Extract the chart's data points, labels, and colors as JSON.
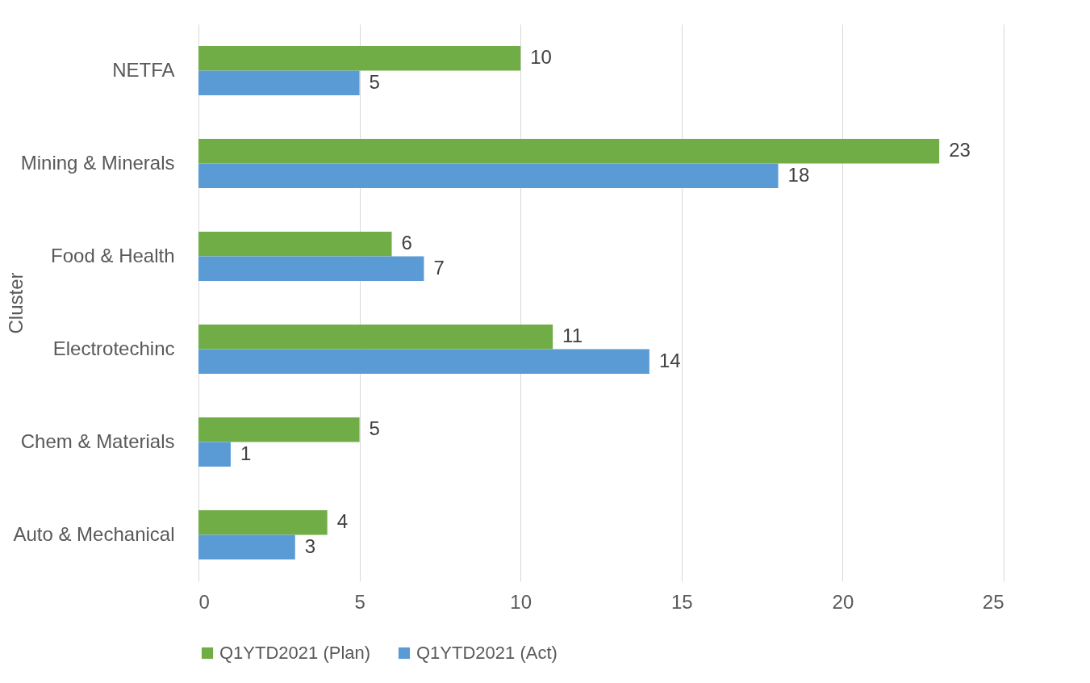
{
  "chart_data": {
    "type": "bar",
    "orientation": "horizontal",
    "ylabel": "Cluster",
    "categories": [
      "NETFA",
      "Mining & Minerals",
      "Food & Health",
      "Electrotechinc",
      "Chem & Materials",
      "Auto & Mechanical"
    ],
    "series": [
      {
        "name": "Q1YTD2021 (Plan)",
        "color": "#70ad47",
        "values": [
          10,
          23,
          6,
          11,
          5,
          4
        ]
      },
      {
        "name": "Q1YTD2021 (Act)",
        "color": "#5b9bd5",
        "values": [
          5,
          18,
          7,
          14,
          1,
          3
        ]
      }
    ],
    "xlim": [
      0,
      25
    ],
    "xticks": [
      0,
      5,
      10,
      15,
      20,
      25
    ],
    "grid": "x",
    "legend": "bottom",
    "data_labels": true
  }
}
